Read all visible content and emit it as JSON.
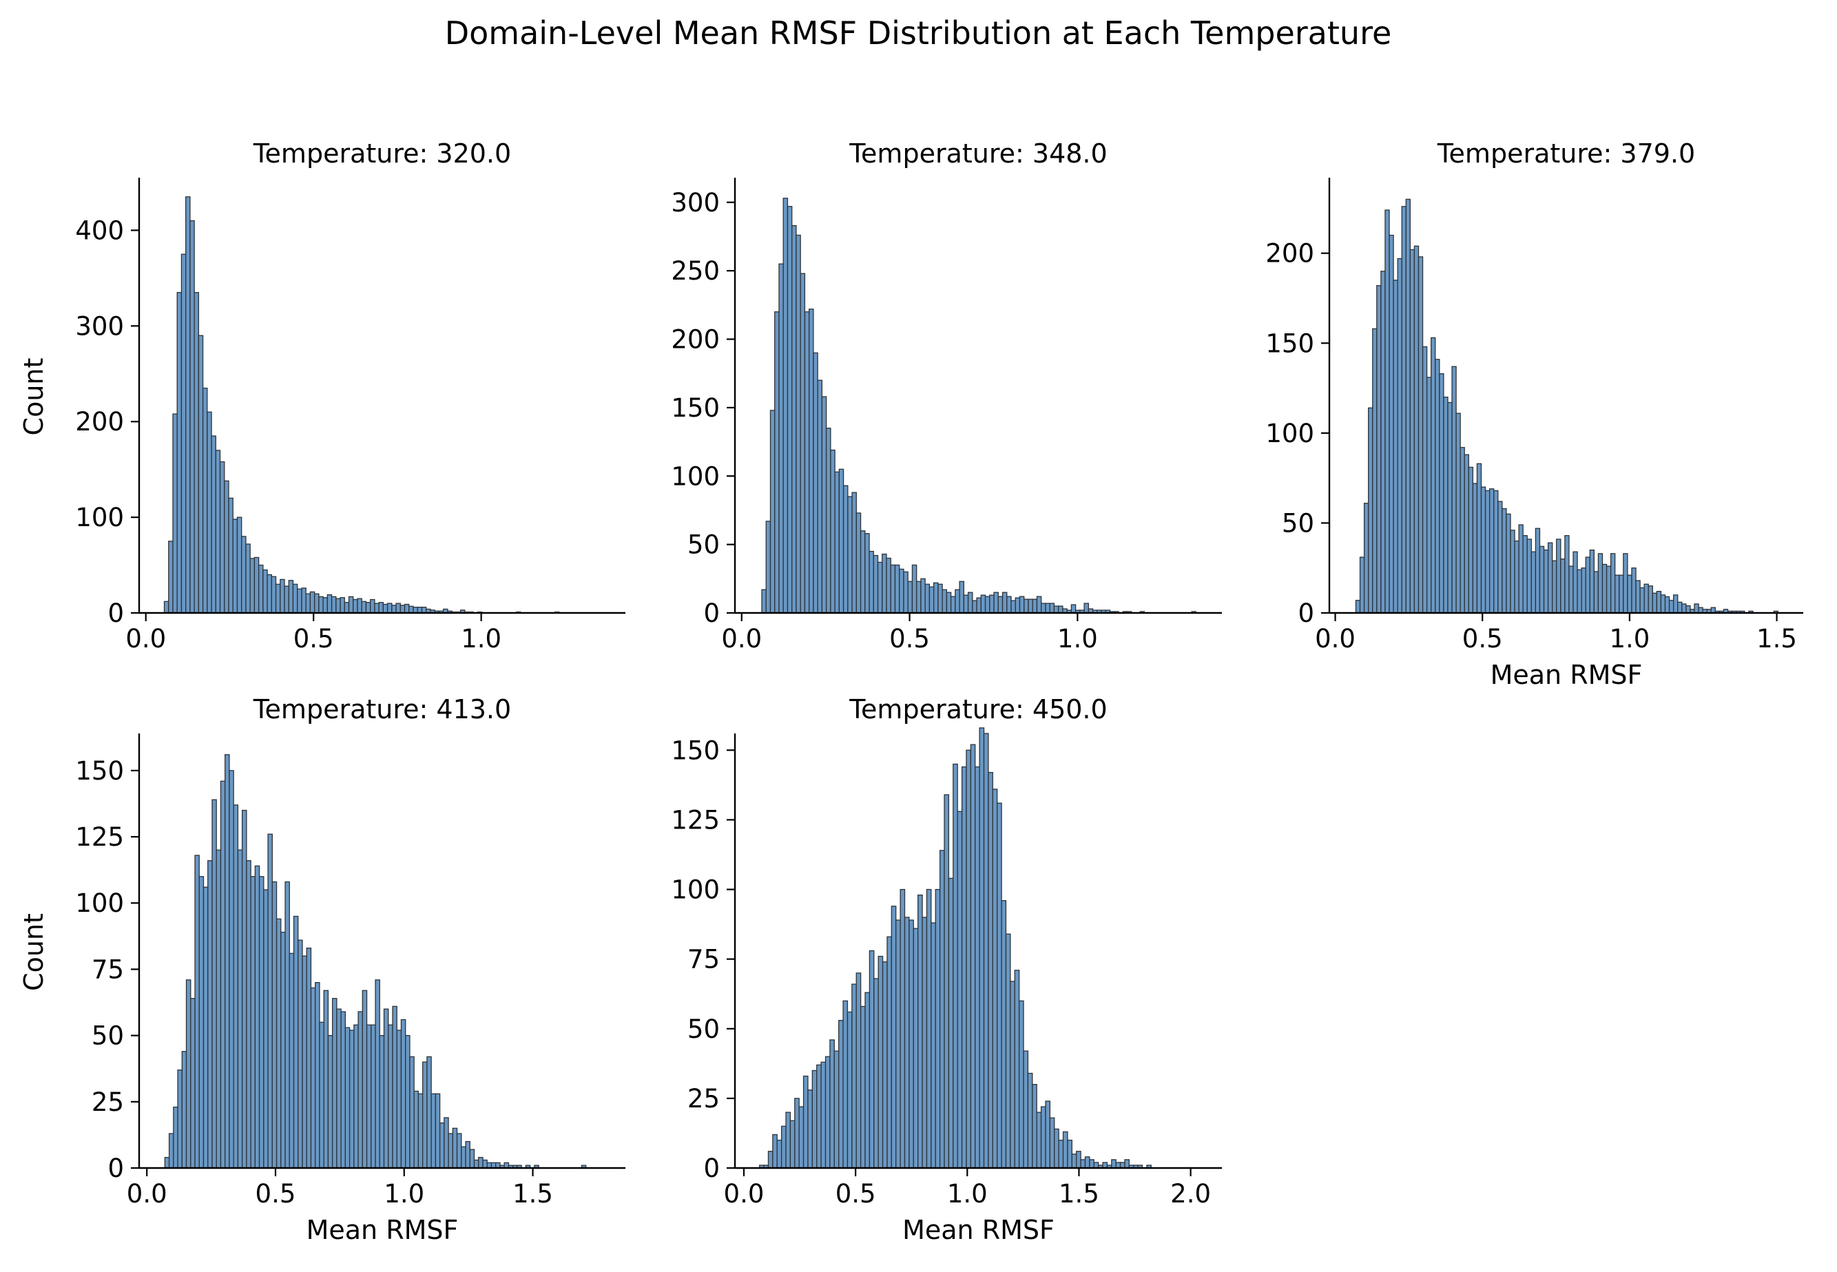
{
  "figure": {
    "title": "Domain-Level Mean RMSF Distribution at Each Temperature",
    "bar_color": "#6a98c4",
    "edge_color": "#2e3338"
  },
  "chart_data": [
    {
      "type": "bar",
      "title": "Temperature: 320.0",
      "xlabel": "",
      "ylabel": "Count",
      "xlim": [
        -0.02,
        1.43
      ],
      "ylim": [
        0,
        455
      ],
      "xticks": [
        0.0,
        0.5,
        1.0
      ],
      "xtick_labels": [
        "0.0",
        "0.5",
        "1.0"
      ],
      "yticks": [
        0,
        100,
        200,
        300,
        400
      ],
      "ytick_labels": [
        "0",
        "100",
        "200",
        "300",
        "400"
      ],
      "bin_start": 0.055,
      "bin_width": 0.0128,
      "counts": [
        12,
        75,
        208,
        335,
        375,
        435,
        410,
        335,
        290,
        235,
        210,
        185,
        170,
        158,
        138,
        120,
        98,
        100,
        80,
        72,
        57,
        58,
        50,
        45,
        40,
        38,
        30,
        35,
        28,
        34,
        30,
        25,
        26,
        20,
        22,
        20,
        17,
        16,
        19,
        17,
        15,
        16,
        11,
        17,
        14,
        15,
        12,
        11,
        14,
        10,
        11,
        9,
        10,
        8,
        10,
        8,
        9,
        7,
        6,
        6,
        6,
        4,
        3,
        2,
        2,
        4,
        2,
        1,
        1,
        3,
        1,
        1,
        0,
        1,
        0,
        0,
        0,
        0,
        0,
        0,
        0,
        0,
        1,
        0,
        0,
        0,
        0,
        0,
        0,
        0,
        0,
        1,
        0
      ]
    },
    {
      "type": "bar",
      "title": "Temperature: 348.0",
      "xlabel": "",
      "ylabel": "",
      "xlim": [
        -0.02,
        1.43
      ],
      "ylim": [
        0,
        318
      ],
      "xticks": [
        0.0,
        0.5,
        1.0
      ],
      "xtick_labels": [
        "0.0",
        "0.5",
        "1.0"
      ],
      "yticks": [
        0,
        50,
        100,
        150,
        200,
        250,
        300
      ],
      "ytick_labels": [
        "0",
        "50",
        "100",
        "150",
        "200",
        "250",
        "300"
      ],
      "bin_start": 0.06,
      "bin_width": 0.0128,
      "counts": [
        17,
        67,
        148,
        220,
        255,
        303,
        297,
        283,
        276,
        248,
        220,
        222,
        190,
        170,
        158,
        135,
        119,
        103,
        105,
        93,
        85,
        88,
        73,
        60,
        58,
        45,
        42,
        37,
        43,
        40,
        35,
        35,
        32,
        30,
        23,
        35,
        23,
        25,
        21,
        19,
        22,
        21,
        17,
        15,
        12,
        17,
        23,
        13,
        15,
        9,
        11,
        13,
        12,
        13,
        15,
        12,
        15,
        12,
        9,
        11,
        12,
        10,
        10,
        10,
        12,
        7,
        7,
        7,
        5,
        5,
        3,
        2,
        6,
        2,
        2,
        7,
        3,
        2,
        2,
        2,
        2,
        1,
        1,
        0,
        1,
        1,
        0,
        0,
        1,
        0,
        0,
        0,
        0,
        0,
        0,
        0,
        0,
        0,
        0,
        0,
        1,
        0,
        0
      ]
    },
    {
      "type": "bar",
      "title": "Temperature: 379.0",
      "xlabel": "Mean RMSF",
      "ylabel": "",
      "xlim": [
        -0.02,
        1.59
      ],
      "ylim": [
        0,
        242
      ],
      "xticks": [
        0.0,
        0.5,
        1.0,
        1.5
      ],
      "xtick_labels": [
        "0.0",
        "0.5",
        "1.0",
        "1.5"
      ],
      "yticks": [
        0,
        50,
        100,
        150,
        200
      ],
      "ytick_labels": [
        "0",
        "50",
        "100",
        "150",
        "200"
      ],
      "bin_start": 0.07,
      "bin_width": 0.0142,
      "counts": [
        7,
        31,
        61,
        114,
        158,
        182,
        190,
        224,
        210,
        185,
        197,
        226,
        230,
        202,
        204,
        198,
        148,
        131,
        153,
        141,
        133,
        120,
        117,
        137,
        111,
        92,
        88,
        81,
        72,
        83,
        70,
        68,
        69,
        68,
        62,
        58,
        55,
        46,
        40,
        49,
        43,
        41,
        34,
        47,
        37,
        35,
        39,
        29,
        41,
        30,
        43,
        26,
        34,
        24,
        25,
        31,
        35,
        23,
        33,
        27,
        26,
        33,
        21,
        21,
        33,
        21,
        25,
        18,
        14,
        16,
        15,
        11,
        12,
        10,
        9,
        7,
        10,
        6,
        5,
        4,
        2,
        5,
        3,
        2,
        2,
        3,
        1,
        1,
        2,
        1,
        1,
        1,
        1,
        0,
        1,
        0,
        0,
        0,
        0,
        0,
        1,
        0,
        0
      ]
    },
    {
      "type": "bar",
      "title": "Temperature: 413.0",
      "xlabel": "Mean RMSF",
      "ylabel": "Count",
      "xlim": [
        -0.03,
        1.86
      ],
      "ylim": [
        0,
        164
      ],
      "xticks": [
        0.0,
        0.5,
        1.0,
        1.5
      ],
      "xtick_labels": [
        "0.0",
        "0.5",
        "1.0",
        "1.5"
      ],
      "yticks": [
        0,
        25,
        50,
        75,
        100,
        125,
        150
      ],
      "ytick_labels": [
        "0",
        "25",
        "50",
        "75",
        "100",
        "125",
        "150"
      ],
      "bin_start": 0.07,
      "bin_width": 0.0167,
      "counts": [
        4,
        13,
        23,
        37,
        44,
        71,
        64,
        118,
        110,
        106,
        116,
        139,
        120,
        146,
        156,
        150,
        137,
        120,
        135,
        116,
        110,
        114,
        110,
        105,
        126,
        108,
        94,
        89,
        108,
        81,
        95,
        86,
        80,
        83,
        68,
        70,
        55,
        67,
        50,
        64,
        60,
        59,
        53,
        52,
        54,
        59,
        67,
        54,
        54,
        71,
        50,
        60,
        54,
        61,
        52,
        56,
        50,
        42,
        29,
        28,
        40,
        42,
        28,
        28,
        17,
        19,
        13,
        15,
        13,
        8,
        10,
        7,
        3,
        4,
        3,
        2,
        2,
        2,
        1,
        2,
        1,
        1,
        1,
        0,
        1,
        0,
        1,
        0,
        0,
        0,
        0,
        0,
        0,
        0,
        0,
        0,
        0,
        1,
        0,
        0
      ]
    },
    {
      "type": "bar",
      "title": "Temperature: 450.0",
      "xlabel": "Mean RMSF",
      "ylabel": "",
      "xlim": [
        -0.04,
        2.14
      ],
      "ylim": [
        0,
        156
      ],
      "xticks": [
        0.0,
        0.5,
        1.0,
        1.5,
        2.0
      ],
      "xtick_labels": [
        "0.0",
        "0.5",
        "1.0",
        "1.5",
        "2.0"
      ],
      "yticks": [
        0,
        25,
        50,
        75,
        100,
        125,
        150
      ],
      "ytick_labels": [
        "0",
        "25",
        "50",
        "75",
        "100",
        "125",
        "150"
      ],
      "bin_start": 0.07,
      "bin_width": 0.0197,
      "counts": [
        1,
        1,
        6,
        12,
        10,
        15,
        20,
        17,
        25,
        22,
        33,
        28,
        35,
        37,
        38,
        40,
        46,
        42,
        53,
        60,
        56,
        66,
        70,
        58,
        63,
        78,
        68,
        76,
        74,
        83,
        94,
        89,
        100,
        90,
        89,
        86,
        98,
        90,
        100,
        88,
        100,
        114,
        134,
        104,
        145,
        128,
        144,
        150,
        152,
        144,
        158,
        156,
        142,
        136,
        131,
        96,
        84,
        67,
        71,
        60,
        42,
        34,
        30,
        20,
        22,
        24,
        18,
        14,
        10,
        13,
        10,
        5,
        6,
        3,
        4,
        3,
        2,
        1,
        2,
        1,
        3,
        2,
        2,
        3,
        1,
        1,
        1,
        0,
        1,
        0,
        0,
        0
      ]
    }
  ]
}
